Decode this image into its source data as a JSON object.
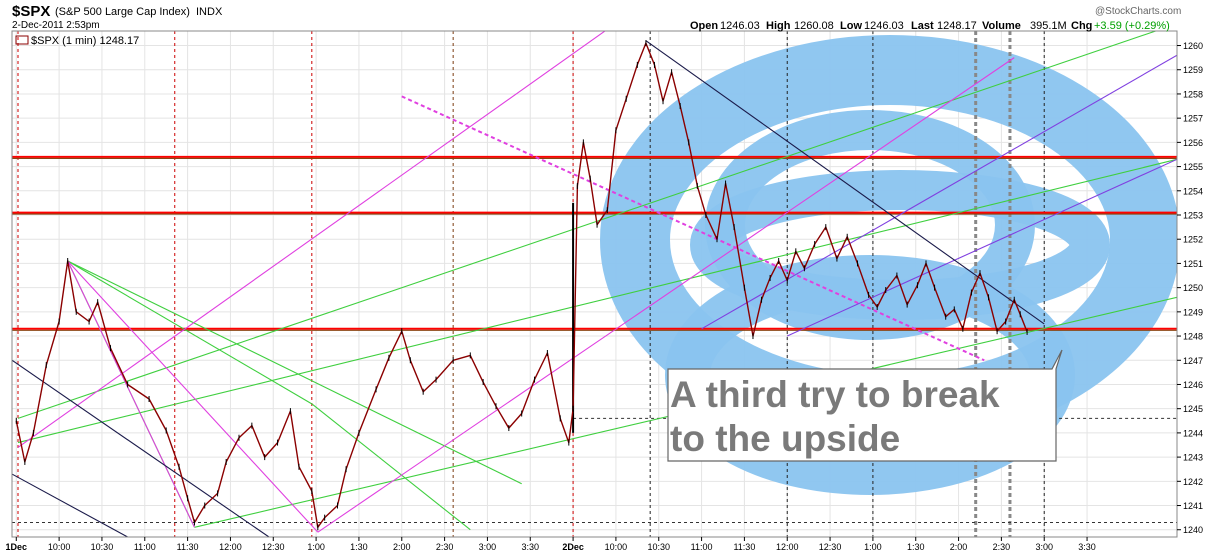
{
  "header": {
    "symbol": "$SPX",
    "name": "(S&P 500 Large Cap Index)",
    "exchange": "INDX",
    "date": "2-Dec-2011 2:53pm",
    "series_label": "$SPX (1 min) 1248.17",
    "watermark": "@StockCharts.com",
    "quote": {
      "open_label": "Open",
      "open": "1246.03",
      "high_label": "High",
      "high": "1260.08",
      "low_label": "Low",
      "low": "1246.03",
      "last_label": "Last",
      "last": "1248.17",
      "volume_label": "Volume",
      "volume": "395.1M",
      "chg_label": "Chg",
      "chg": "+3.59 (+0.29%)",
      "chg_color": "#00a000"
    }
  },
  "annotation": {
    "lines": [
      "A third try to break",
      "to the upside"
    ]
  },
  "colors": {
    "candle": "#8b0000",
    "support_red": "#ff0000",
    "brown": "#8b4513",
    "green": "#3fcf3f",
    "magenta": "#e040e0",
    "purple": "#8040e0",
    "navy": "#1a1a4a",
    "ellipse": "#8ac4ef"
  },
  "chart_data": {
    "type": "line",
    "title": "$SPX (S&P 500 Large Cap Index) INDX",
    "series_name": "$SPX (1 min)",
    "y_range": [
      1239.7,
      1260.6
    ],
    "y_ticks": [
      1240,
      1241,
      1242,
      1243,
      1244,
      1245,
      1246,
      1247,
      1248,
      1249,
      1250,
      1251,
      1252,
      1253,
      1254,
      1255,
      1256,
      1257,
      1258,
      1259,
      1260
    ],
    "x_range": [
      -0.05,
      13.55
    ],
    "x_ticks": [
      {
        "x": 0.0,
        "label": "1Dec",
        "bold": true
      },
      {
        "x": 0.5,
        "label": "10:00"
      },
      {
        "x": 1.0,
        "label": "10:30"
      },
      {
        "x": 1.5,
        "label": "11:00"
      },
      {
        "x": 2.0,
        "label": "11:30"
      },
      {
        "x": 2.5,
        "label": "12:00"
      },
      {
        "x": 3.0,
        "label": "12:30"
      },
      {
        "x": 3.5,
        "label": "1:00"
      },
      {
        "x": 4.0,
        "label": "1:30"
      },
      {
        "x": 4.5,
        "label": "2:00"
      },
      {
        "x": 5.0,
        "label": "2:30"
      },
      {
        "x": 5.5,
        "label": "3:00"
      },
      {
        "x": 6.0,
        "label": "3:30"
      },
      {
        "x": 6.5,
        "label": "2Dec",
        "bold": true
      },
      {
        "x": 7.0,
        "label": "10:00"
      },
      {
        "x": 7.5,
        "label": "10:30"
      },
      {
        "x": 8.0,
        "label": "11:00"
      },
      {
        "x": 8.5,
        "label": "11:30"
      },
      {
        "x": 9.0,
        "label": "12:00"
      },
      {
        "x": 9.5,
        "label": "12:30"
      },
      {
        "x": 10.0,
        "label": "1:00"
      },
      {
        "x": 10.5,
        "label": "1:30"
      },
      {
        "x": 11.0,
        "label": "2:00"
      },
      {
        "x": 11.5,
        "label": "2:30"
      },
      {
        "x": 12.0,
        "label": "3:00"
      },
      {
        "x": 12.5,
        "label": "3:30"
      }
    ],
    "price_path": [
      [
        0.0,
        1244.5
      ],
      [
        0.1,
        1242.8
      ],
      [
        0.2,
        1244.0
      ],
      [
        0.35,
        1246.8
      ],
      [
        0.5,
        1248.6
      ],
      [
        0.6,
        1251.1
      ],
      [
        0.7,
        1249.0
      ],
      [
        0.85,
        1248.6
      ],
      [
        0.95,
        1249.4
      ],
      [
        1.1,
        1247.5
      ],
      [
        1.3,
        1246.0
      ],
      [
        1.55,
        1245.4
      ],
      [
        1.75,
        1244.1
      ],
      [
        1.9,
        1242.6
      ],
      [
        2.0,
        1241.3
      ],
      [
        2.08,
        1240.3
      ],
      [
        2.2,
        1241.0
      ],
      [
        2.35,
        1241.5
      ],
      [
        2.45,
        1242.8
      ],
      [
        2.6,
        1243.8
      ],
      [
        2.75,
        1244.3
      ],
      [
        2.9,
        1243.0
      ],
      [
        3.05,
        1243.6
      ],
      [
        3.2,
        1244.9
      ],
      [
        3.3,
        1242.6
      ],
      [
        3.45,
        1241.6
      ],
      [
        3.52,
        1240.1
      ],
      [
        3.6,
        1240.5
      ],
      [
        3.75,
        1241.0
      ],
      [
        3.85,
        1242.5
      ],
      [
        4.0,
        1244.0
      ],
      [
        4.2,
        1245.8
      ],
      [
        4.35,
        1247.1
      ],
      [
        4.5,
        1248.2
      ],
      [
        4.6,
        1247.0
      ],
      [
        4.75,
        1245.7
      ],
      [
        4.9,
        1246.2
      ],
      [
        5.1,
        1247.0
      ],
      [
        5.3,
        1247.2
      ],
      [
        5.45,
        1246.1
      ],
      [
        5.6,
        1245.1
      ],
      [
        5.75,
        1244.2
      ],
      [
        5.9,
        1244.8
      ],
      [
        6.05,
        1246.2
      ],
      [
        6.2,
        1247.3
      ],
      [
        6.35,
        1244.6
      ],
      [
        6.45,
        1243.6
      ],
      [
        6.5,
        1245.0
      ],
      [
        6.55,
        1254.2
      ],
      [
        6.62,
        1256.0
      ],
      [
        6.7,
        1254.5
      ],
      [
        6.78,
        1252.6
      ],
      [
        6.9,
        1253.2
      ],
      [
        7.0,
        1256.5
      ],
      [
        7.12,
        1257.8
      ],
      [
        7.25,
        1259.2
      ],
      [
        7.35,
        1260.1
      ],
      [
        7.45,
        1259.2
      ],
      [
        7.55,
        1257.7
      ],
      [
        7.65,
        1258.9
      ],
      [
        7.75,
        1257.5
      ],
      [
        7.85,
        1256.0
      ],
      [
        7.95,
        1254.2
      ],
      [
        8.05,
        1253.0
      ],
      [
        8.18,
        1252.0
      ],
      [
        8.28,
        1254.3
      ],
      [
        8.38,
        1252.5
      ],
      [
        8.5,
        1250.0
      ],
      [
        8.6,
        1248.0
      ],
      [
        8.7,
        1249.5
      ],
      [
        8.8,
        1250.4
      ],
      [
        8.9,
        1251.1
      ],
      [
        9.0,
        1250.3
      ],
      [
        9.1,
        1251.5
      ],
      [
        9.2,
        1250.8
      ],
      [
        9.32,
        1251.8
      ],
      [
        9.45,
        1252.5
      ],
      [
        9.58,
        1251.2
      ],
      [
        9.7,
        1252.1
      ],
      [
        9.82,
        1251.0
      ],
      [
        9.95,
        1249.7
      ],
      [
        10.05,
        1249.2
      ],
      [
        10.15,
        1249.9
      ],
      [
        10.28,
        1250.5
      ],
      [
        10.4,
        1249.3
      ],
      [
        10.52,
        1250.1
      ],
      [
        10.62,
        1251.0
      ],
      [
        10.72,
        1250.0
      ],
      [
        10.85,
        1248.8
      ],
      [
        10.95,
        1249.1
      ],
      [
        11.05,
        1248.3
      ],
      [
        11.15,
        1249.8
      ],
      [
        11.25,
        1250.6
      ],
      [
        11.35,
        1249.6
      ],
      [
        11.45,
        1248.2
      ],
      [
        11.55,
        1248.6
      ],
      [
        11.65,
        1249.5
      ],
      [
        11.72,
        1248.9
      ],
      [
        11.8,
        1248.17
      ]
    ],
    "horizontal_levels": [
      {
        "y": 1255.4,
        "kind": "red"
      },
      {
        "y": 1253.1,
        "kind": "red"
      },
      {
        "y": 1248.3,
        "kind": "red"
      },
      {
        "y": 1255.4,
        "kind": "brown"
      },
      {
        "y": 1253.1,
        "kind": "brown"
      },
      {
        "y": 1248.3,
        "kind": "brown"
      }
    ],
    "dashed_levels": [
      {
        "y": 1240.3,
        "x0": -0.05,
        "x1": 13.55
      },
      {
        "y": 1244.6,
        "x0": 6.5,
        "x1": 13.55
      }
    ],
    "trendlines": [
      {
        "kind": "green",
        "p1": [
          0.02,
          1244.6
        ],
        "p2": [
          13.55,
          1260.9
        ]
      },
      {
        "kind": "green",
        "p1": [
          0.02,
          1243.6
        ],
        "p2": [
          13.55,
          1255.3
        ]
      },
      {
        "kind": "green",
        "p1": [
          2.08,
          1240.1
        ],
        "p2": [
          13.55,
          1249.6
        ]
      },
      {
        "kind": "green",
        "p1": [
          0.6,
          1251.1
        ],
        "p2": [
          2.08,
          1240.1
        ]
      },
      {
        "kind": "green",
        "p1": [
          0.6,
          1251.1
        ],
        "p2": [
          3.45,
          1245.2
        ]
      },
      {
        "kind": "green",
        "p1": [
          3.45,
          1245.2
        ],
        "p2": [
          5.3,
          1240.0
        ]
      },
      {
        "kind": "green",
        "p1": [
          0.6,
          1251.1
        ],
        "p2": [
          5.9,
          1241.9
        ]
      },
      {
        "kind": "magenta",
        "p1": [
          0.02,
          1243.4
        ],
        "p2": [
          7.35,
          1261.8
        ]
      },
      {
        "kind": "magenta",
        "p1": [
          0.6,
          1251.1
        ],
        "p2": [
          3.52,
          1239.9
        ]
      },
      {
        "kind": "magenta",
        "p1": [
          3.52,
          1239.9
        ],
        "p2": [
          11.65,
          1259.5
        ]
      },
      {
        "kind": "magenta",
        "p1": [
          0.6,
          1251.1
        ],
        "p2": [
          2.08,
          1240.1
        ]
      },
      {
        "kind": "magenta_dashed",
        "p1": [
          4.5,
          1257.9
        ],
        "p2": [
          11.3,
          1247.0
        ]
      },
      {
        "kind": "purple",
        "p1": [
          8.0,
          1248.3
        ],
        "p2": [
          13.55,
          1259.6
        ]
      },
      {
        "kind": "purple",
        "p1": [
          9.0,
          1248.0
        ],
        "p2": [
          13.55,
          1255.3
        ]
      },
      {
        "kind": "navy",
        "p1": [
          7.35,
          1260.2
        ],
        "p2": [
          12.0,
          1248.5
        ]
      },
      {
        "kind": "navy",
        "p1": [
          -0.05,
          1247.0
        ],
        "p2": [
          2.95,
          1239.7
        ]
      },
      {
        "kind": "navy",
        "p1": [
          -0.05,
          1242.3
        ],
        "p2": [
          1.3,
          1239.7
        ]
      }
    ],
    "vertical_markers": [
      {
        "x": 0.02,
        "style": "red_dashed"
      },
      {
        "x": 1.85,
        "style": "red_dashed"
      },
      {
        "x": 3.45,
        "style": "red_dashed"
      },
      {
        "x": 5.1,
        "style": "brown_dashed"
      },
      {
        "x": 6.5,
        "style": "red_dashed"
      },
      {
        "x": 7.4,
        "style": "black_dashed"
      },
      {
        "x": 9.0,
        "style": "black_dashed"
      },
      {
        "x": 10.0,
        "style": "black_dashed"
      },
      {
        "x": 11.2,
        "style": "gray_bold_dashed"
      },
      {
        "x": 11.6,
        "style": "gray_bold_dashed"
      },
      {
        "x": 12.0,
        "style": "black_dashed"
      }
    ],
    "gap_line": {
      "x": 6.5,
      "y0": 1244.0,
      "y1": 1253.5
    }
  }
}
